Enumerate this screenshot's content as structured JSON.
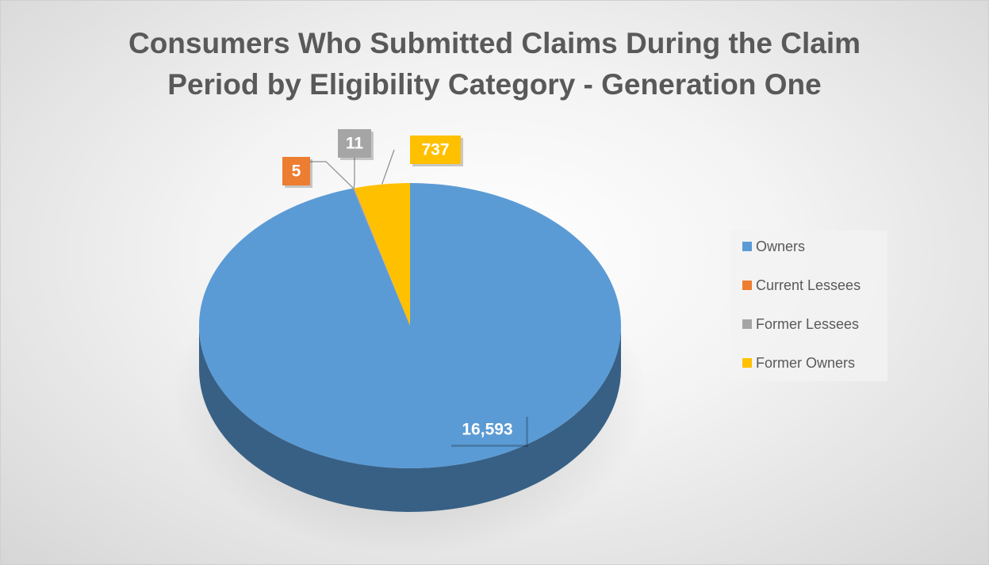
{
  "chart_data": {
    "type": "pie",
    "title": "Consumers Who Submitted Claims During the Claim Period by Eligibility Category - Generation One",
    "categories": [
      "Owners",
      "Current Lessees",
      "Former Lessees",
      "Former Owners"
    ],
    "values": [
      16593,
      5,
      11,
      737
    ],
    "value_labels": [
      "16,593",
      "5",
      "11",
      "737"
    ],
    "colors": [
      "#5b9bd5",
      "#ed7d31",
      "#a5a5a5",
      "#ffc000"
    ],
    "legend": "right"
  }
}
